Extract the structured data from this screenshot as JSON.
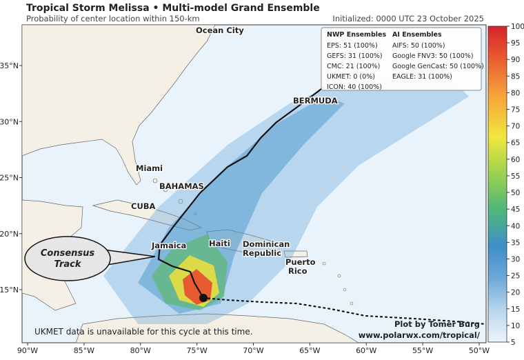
{
  "header": {
    "title": "Tropical Storm Melissa • Multi-model Grand Ensemble",
    "subtitle": "Probability of center location within 150-km",
    "initialized": "Initialized: 0000 UTC 23 October 2025"
  },
  "legend": {
    "nwp_title": "NWP Ensembles",
    "nwp": [
      "EPS: 51 (100%)",
      "GEFS: 31 (100%)",
      "CMC: 21 (100%)",
      "UKMET: 0 (0%)",
      "ICON: 40 (100%)"
    ],
    "ai_title": "AI Ensembles",
    "ai": [
      "AIFS: 50 (100%)",
      "Google FNV3: 50 (100%)",
      "Google GenCast: 50 (100%)",
      "EAGLE: 31 (100%)"
    ]
  },
  "places": [
    "Ocean City",
    "BERMUDA",
    "Miami",
    "BAHAMAS",
    "CUBA",
    "Jamaica",
    "Haiti",
    "Dominican Republic",
    "Puerto Rico"
  ],
  "callout": [
    "Consensus",
    "Track"
  ],
  "notes": {
    "ukmet": "UKMET data is unavailable for this cycle at this time.",
    "credit": "Plot by Tomer Burg",
    "url": "www.polarwx.com/tropical/"
  },
  "axes": {
    "lon_ticks": [
      {
        "value": -90,
        "label": "90°W"
      },
      {
        "value": -85,
        "label": "85°W"
      },
      {
        "value": -80,
        "label": "80°W"
      },
      {
        "value": -75,
        "label": "75°W"
      },
      {
        "value": -70,
        "label": "70°W"
      },
      {
        "value": -65,
        "label": "65°W"
      },
      {
        "value": -60,
        "label": "60°W"
      },
      {
        "value": -55,
        "label": "55°W"
      },
      {
        "value": -50,
        "label": "50°W"
      }
    ],
    "lat_ticks": [
      {
        "value": 15,
        "label": "15°N"
      },
      {
        "value": 20,
        "label": "20°N"
      },
      {
        "value": 25,
        "label": "25°N"
      },
      {
        "value": 30,
        "label": "30°N"
      },
      {
        "value": 35,
        "label": "35°N"
      }
    ]
  },
  "colorbar": {
    "range": [
      5,
      100
    ],
    "ticks": [
      5,
      10,
      15,
      20,
      25,
      30,
      35,
      40,
      45,
      50,
      55,
      60,
      65,
      70,
      75,
      80,
      85,
      90,
      95,
      100
    ]
  }
}
